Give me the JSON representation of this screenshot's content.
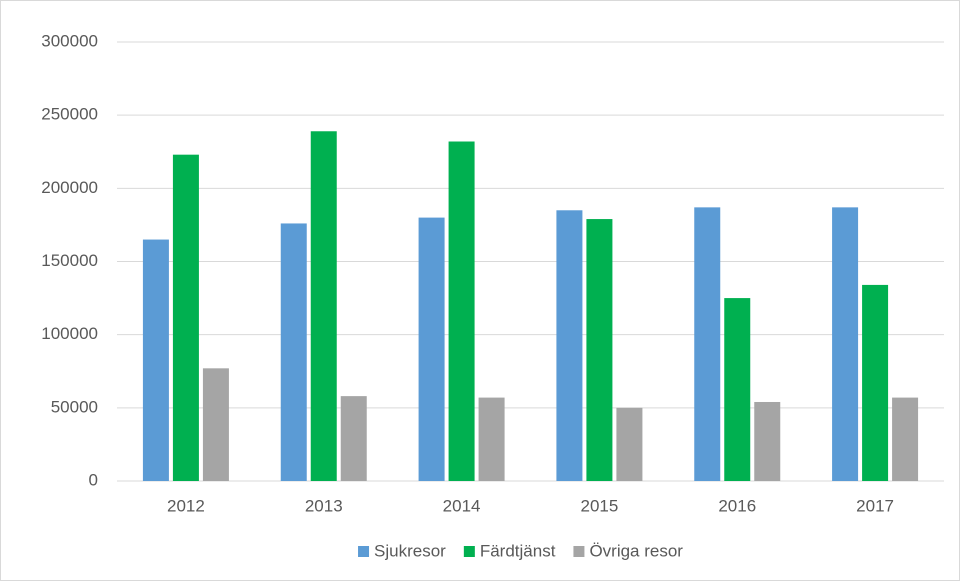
{
  "chart_data": {
    "type": "bar",
    "categories": [
      "2012",
      "2013",
      "2014",
      "2015",
      "2016",
      "2017"
    ],
    "series": [
      {
        "name": "Sjukresor",
        "color": "#5b9bd5",
        "values": [
          165000,
          176000,
          180000,
          185000,
          187000,
          187000
        ]
      },
      {
        "name": "Färdtjänst",
        "color": "#00b050",
        "values": [
          223000,
          239000,
          232000,
          179000,
          125000,
          134000
        ]
      },
      {
        "name": "Övriga resor",
        "color": "#a5a5a5",
        "values": [
          77000,
          58000,
          57000,
          50000,
          54000,
          57000
        ]
      }
    ],
    "ylim": [
      0,
      300000
    ],
    "yticks": [
      0,
      50000,
      100000,
      150000,
      200000,
      250000,
      300000
    ],
    "grid": true,
    "legend": "bottom"
  }
}
